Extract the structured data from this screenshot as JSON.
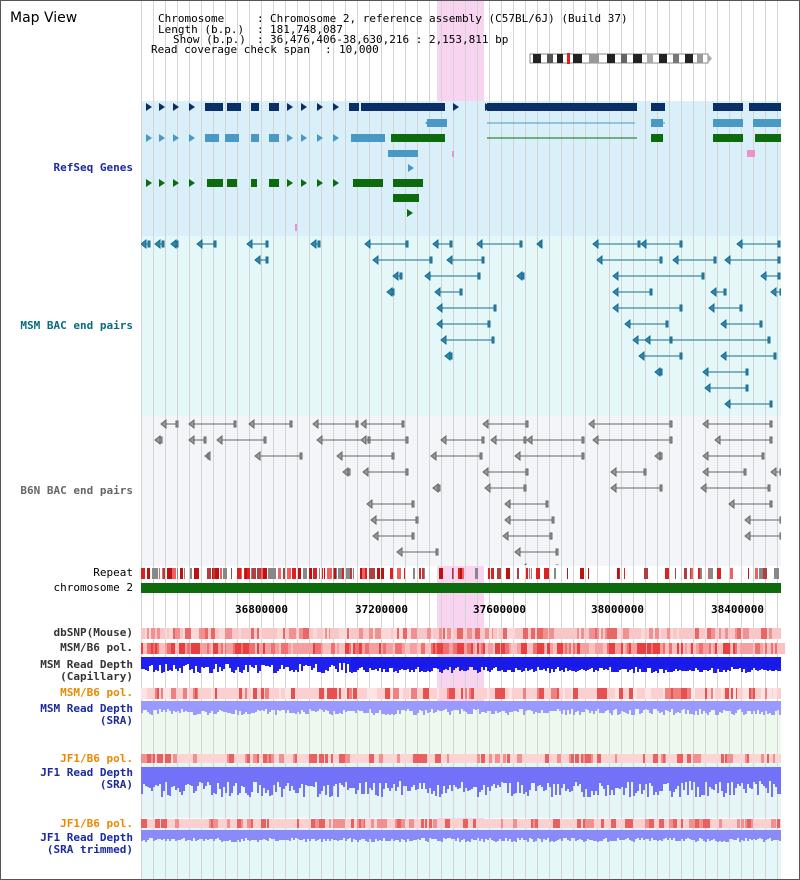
{
  "page": {
    "title": "Map View"
  },
  "info": {
    "chromosome_label": "Chromosome",
    "chromosome_value": "Chromosome 2, reference assembly (C57BL/6J) (Build 37)",
    "length_label": "Length (b.p.)",
    "length_value": "181,748,087",
    "show_label": "Show (b.p.)",
    "show_value": "36,476,406-38,630,216 : 2,153,811 bp",
    "span_label": "Read coverage check span",
    "span_value": "10,000"
  },
  "tracks": {
    "refseq": "RefSeq Genes",
    "msm_bac": "MSM BAC end pairs",
    "b6n_bac": "B6N BAC end pairs",
    "repeat": "Repeat",
    "chromosome": "chromosome 2",
    "dbsnp": "dbSNP(Mouse)",
    "msm_b6_pol_1": "MSM/B6 pol.",
    "msm_depth_cap": "MSM Read Depth\n(Capillary)",
    "msm_b6_pol_2": "MSM/B6 pol.",
    "msm_depth_sra": "MSM Read Depth\n(SRA)",
    "jf1_b6_pol_1": "JF1/B6 pol.",
    "jf1_depth_sra": "JF1 Read Depth\n(SRA)",
    "jf1_b6_pol_2": "JF1/B6 pol.",
    "jf1_depth_trim": "JF1 Read Depth\n(SRA trimmed)"
  },
  "axis": {
    "ticks": [
      "36800000",
      "37200000",
      "37600000",
      "38000000",
      "38400000"
    ]
  },
  "colors": {
    "refseq_bg": "#d9f0fa",
    "msm_bg": "#e4f8fa",
    "b6n_bg": "#f4f5f8",
    "highlight": "#f8d4f0",
    "navy": "#0a2f66",
    "teal": "#4a98c4",
    "green": "#0d6a0d",
    "msm_label": "#0a6a80",
    "b6n_label": "#555555",
    "refseq_label": "#1a2aa0",
    "orange_label": "#e88a00",
    "depth_blue": "#1a1ae8",
    "depth_light": "#8888ff"
  }
}
